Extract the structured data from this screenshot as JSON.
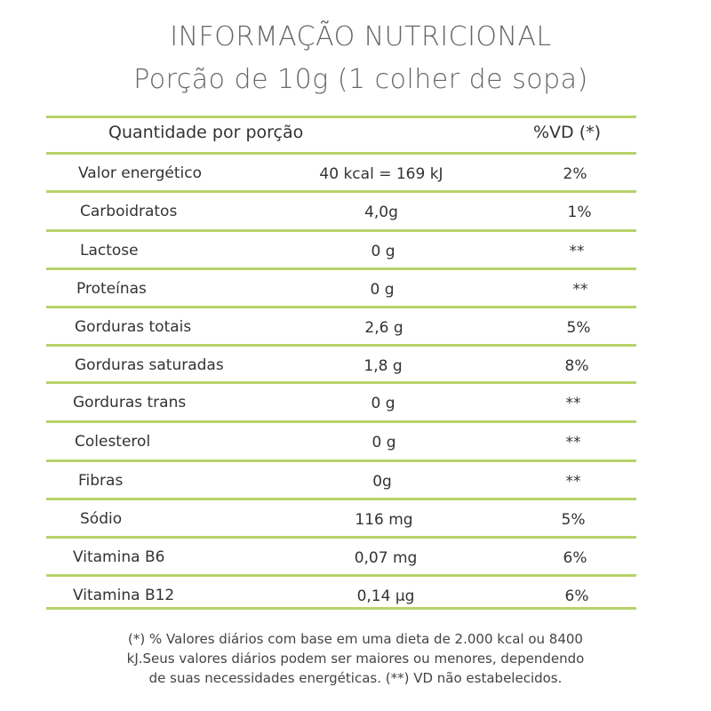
{
  "title": "INFORMAÇÃO NUTRICIONAL",
  "subtitle": "Porção de 10g (1 colher de sopa)",
  "header": {
    "label": "Quantidade por porção",
    "vd": "%VD (*)"
  },
  "rows": [
    {
      "name": "Valor energético",
      "amount": "40 kcal = 169 kJ",
      "vd": "2%"
    },
    {
      "name": "Carboidratos",
      "amount": "4,0g",
      "vd": "1%"
    },
    {
      "name": "Lactose",
      "amount": "0 g",
      "vd": "**"
    },
    {
      "name": "Proteínas",
      "amount": "0 g",
      "vd": "**"
    },
    {
      "name": "Gorduras totais",
      "amount": "2,6 g",
      "vd": "5%"
    },
    {
      "name": "Gorduras saturadas",
      "amount": "1,8 g",
      "vd": "8%"
    },
    {
      "name": "Gorduras trans",
      "amount": "0 g",
      "vd": "**"
    },
    {
      "name": "Colesterol",
      "amount": "0 g",
      "vd": "**"
    },
    {
      "name": "Fibras",
      "amount": "0g",
      "vd": "**"
    },
    {
      "name": "Sódio",
      "amount": "116 mg",
      "vd": "5%"
    },
    {
      "name": "Vitamina B6",
      "amount": "0,07 mg",
      "vd": "6%"
    },
    {
      "name": "Vitamina B12",
      "amount": "0,14 µg",
      "vd": "6%"
    }
  ],
  "footer": {
    "line1": "(*) % Valores diários com base em uma dieta de 2.000 kcal ou 8400",
    "line2": "kJ.Seus valores diários podem ser maiores ou menores, dependendo",
    "line3": "de suas necessidades energéticas. (**) VD não estabelecidos."
  },
  "colors": {
    "rule": "#b7d36b",
    "text": "#333333",
    "title": "#666666"
  }
}
